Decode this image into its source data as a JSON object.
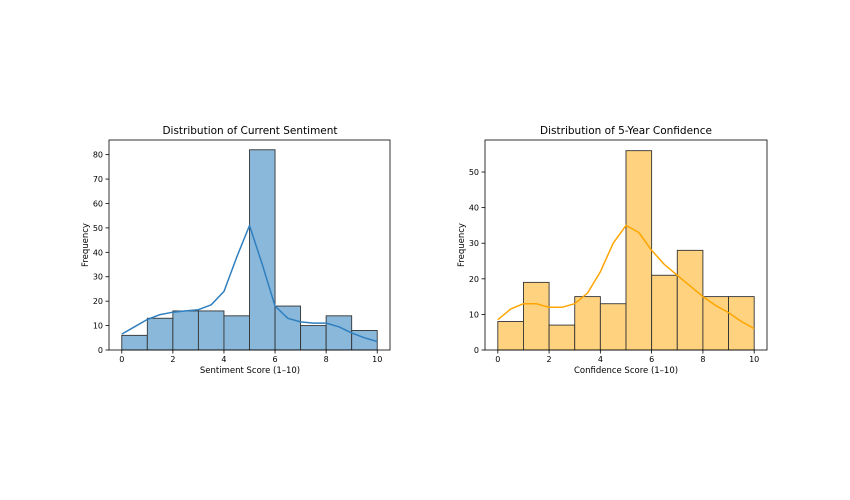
{
  "chart_data": [
    {
      "type": "bar",
      "title": "Distribution of Current Sentiment",
      "xlabel": "Sentiment Score (1–10)",
      "ylabel": "Frequency",
      "xlim": [
        -0.5,
        10.5
      ],
      "ylim": [
        0,
        86
      ],
      "xticks": [
        0,
        2,
        4,
        6,
        8,
        10
      ],
      "yticks": [
        0,
        10,
        20,
        30,
        40,
        50,
        60,
        70,
        80
      ],
      "bin_edges": [
        0,
        1,
        2,
        3,
        4,
        5,
        6,
        7,
        8,
        9,
        10
      ],
      "values": [
        6,
        13,
        16,
        16,
        14,
        82,
        18,
        10,
        14,
        8
      ],
      "kde": {
        "x": [
          0,
          0.5,
          1,
          1.5,
          2,
          2.5,
          3,
          3.5,
          4,
          4.5,
          5,
          5.5,
          6,
          6.5,
          7,
          7.5,
          8,
          8.5,
          9,
          9.5,
          10
        ],
        "y": [
          6.5,
          9.5,
          12.5,
          14.5,
          15.5,
          16,
          16.5,
          18.5,
          24,
          38,
          51,
          35,
          18,
          13,
          11.5,
          11,
          11,
          9.5,
          7,
          5,
          3.5
        ]
      },
      "grid": false,
      "colors": {
        "bar_fill": "#8ab8db",
        "bar_edge": "#333333",
        "kde": "#2f7fbf"
      }
    },
    {
      "type": "bar",
      "title": "Distribution of 5-Year Confidence",
      "xlabel": "Confidence Score (1–10)",
      "ylabel": "Frequency",
      "xlim": [
        -0.5,
        10.5
      ],
      "ylim": [
        0,
        59
      ],
      "xticks": [
        0,
        2,
        4,
        6,
        8,
        10
      ],
      "yticks": [
        0,
        10,
        20,
        30,
        40,
        50
      ],
      "bin_edges": [
        0,
        1,
        2,
        3,
        4,
        5,
        6,
        7,
        8,
        9,
        10
      ],
      "values": [
        8,
        19,
        7,
        15,
        13,
        56,
        21,
        28,
        15,
        15
      ],
      "kde": {
        "x": [
          0,
          0.5,
          1,
          1.5,
          2,
          2.5,
          3,
          3.5,
          4,
          4.5,
          5,
          5.5,
          6,
          6.5,
          7,
          7.5,
          8,
          8.5,
          9,
          9.5,
          10
        ],
        "y": [
          8.5,
          11.5,
          13,
          13,
          12,
          12,
          13,
          16,
          22,
          30,
          35,
          33,
          28,
          24,
          21,
          18,
          15,
          12.5,
          10.5,
          8,
          6
        ]
      },
      "grid": false,
      "colors": {
        "bar_fill": "#ffd27f",
        "bar_edge": "#333333",
        "kde": "#ffa500"
      }
    }
  ]
}
